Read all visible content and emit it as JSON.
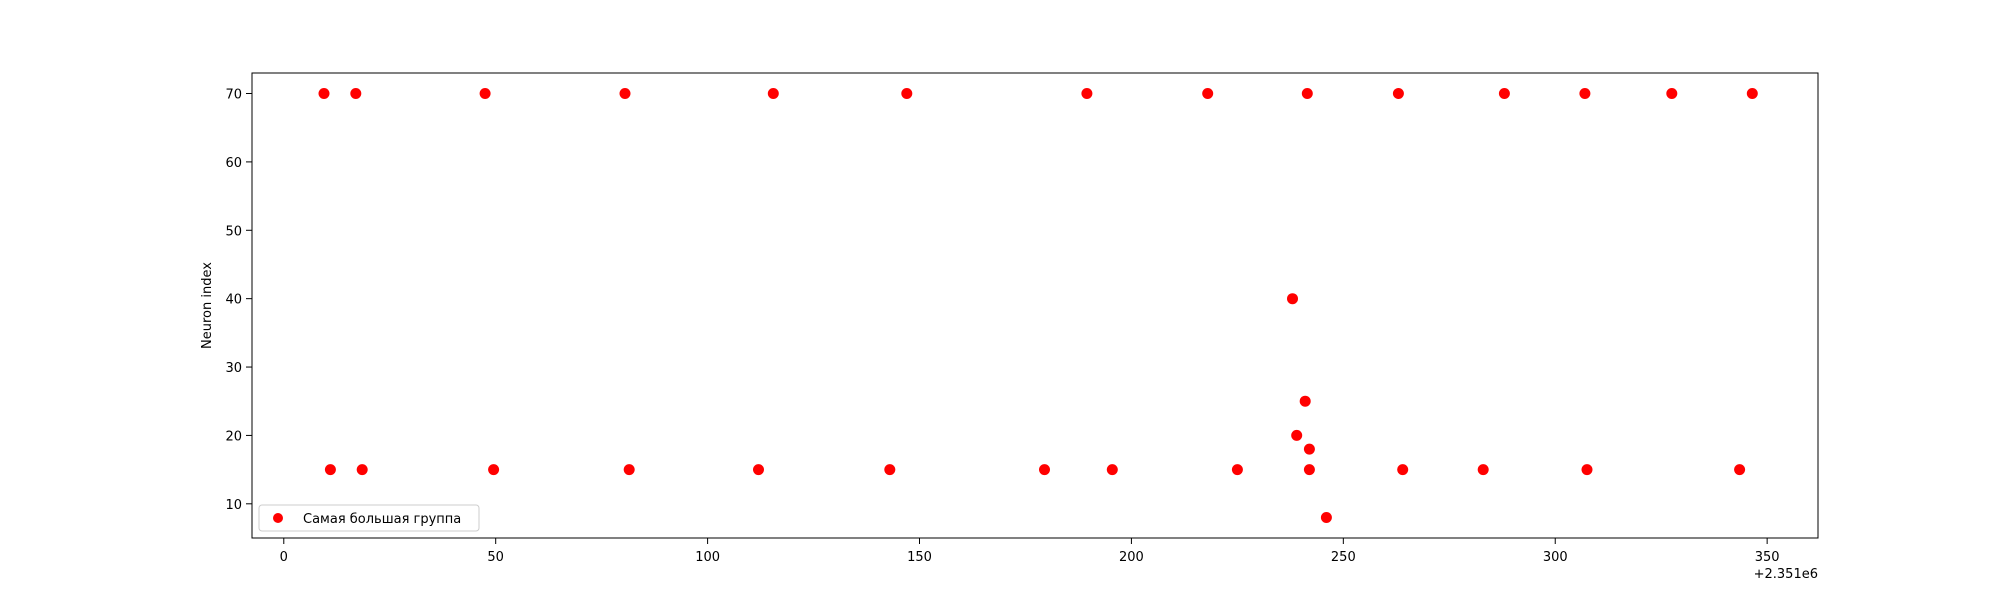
{
  "chart_data": {
    "type": "scatter",
    "title": "",
    "xlabel": "",
    "ylabel": "Neuron index",
    "x_offset_label": "+2.351e6",
    "xlim": [
      -7.5,
      362
    ],
    "ylim": [
      5,
      73
    ],
    "x_ticks": [
      0,
      50,
      100,
      150,
      200,
      250,
      300,
      350
    ],
    "y_ticks": [
      10,
      20,
      30,
      40,
      50,
      60,
      70
    ],
    "grid": false,
    "legend_position": "lower-left",
    "series": [
      {
        "name": "Самая большая группа",
        "color": "#ff0000",
        "points": [
          [
            9.5,
            70
          ],
          [
            17,
            70
          ],
          [
            47.5,
            70
          ],
          [
            80.5,
            70
          ],
          [
            115.5,
            70
          ],
          [
            147,
            70
          ],
          [
            189.5,
            70
          ],
          [
            218,
            70
          ],
          [
            241.5,
            70
          ],
          [
            263,
            70
          ],
          [
            288,
            70
          ],
          [
            307,
            70
          ],
          [
            327.5,
            70
          ],
          [
            346.5,
            70
          ],
          [
            238,
            40
          ],
          [
            241,
            25
          ],
          [
            239,
            20
          ],
          [
            242,
            18
          ],
          [
            11,
            15
          ],
          [
            18.5,
            15
          ],
          [
            49.5,
            15
          ],
          [
            81.5,
            15
          ],
          [
            112,
            15
          ],
          [
            143,
            15
          ],
          [
            179.5,
            15
          ],
          [
            195.5,
            15
          ],
          [
            225,
            15
          ],
          [
            242,
            15
          ],
          [
            264,
            15
          ],
          [
            283,
            15
          ],
          [
            307.5,
            15
          ],
          [
            343.5,
            15
          ],
          [
            246,
            8
          ]
        ]
      }
    ]
  }
}
